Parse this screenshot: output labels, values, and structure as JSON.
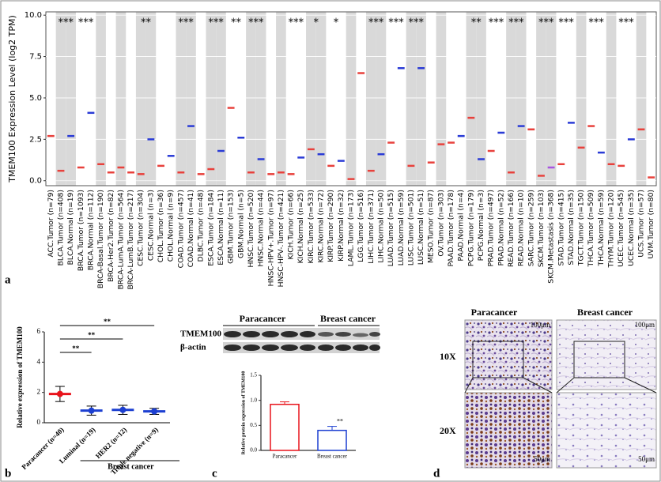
{
  "panels": [
    "a",
    "b",
    "c",
    "d"
  ],
  "chart_data": [
    {
      "type": "box",
      "ylabel": "TMEM100 Expression Level (log2 TPM)",
      "categories": [
        "ACC.Tumor (n=79)",
        "BLCA.Tumor (n=408)",
        "BLCA.Normal (n=19)",
        "BRCA.Tumor (n=1093)",
        "BRCA.Normal (n=112)",
        "BRCA-Basal.Tumor (n=190)",
        "BRCA-Her2.Tumor (n=82)",
        "BRCA-LumA.Tumor (n=564)",
        "BRCA-LumB.Tumor (n=217)",
        "CESC.Tumor (n=304)",
        "CESC.Normal (n=3)",
        "CHOL.Tumor (n=36)",
        "CHOL.Normal (n=9)",
        "COAD.Tumor (n=457)",
        "COAD.Normal (n=41)",
        "DLBC.Tumor (n=48)",
        "ESCA.Tumor (n=184)",
        "ESCA.Normal (n=11)",
        "GBM.Tumor (n=153)",
        "GBM.Normal (n=5)",
        "HNSC.Tumor (n=520)",
        "HNSC.Normal (n=44)",
        "HNSC-HPV+.Tumor (n=97)",
        "HNSC-HPV-.Tumor (n=421)",
        "KICH.Tumor (n=66)",
        "KICH.Normal (n=25)",
        "KIRC.Tumor (n=533)",
        "KIRC.Normal (n=72)",
        "KIRP.Tumor (n=290)",
        "KIRP.Normal (n=32)",
        "LAML.Tumor (n=173)",
        "LGG.Tumor (n=516)",
        "LIHC.Tumor (n=371)",
        "LIHC.Normal (n=50)",
        "LUAD.Tumor (n=515)",
        "LUAD.Normal (n=59)",
        "LUSC.Tumor (n=501)",
        "LUSC.Normal (n=51)",
        "MESO.Tumor (n=87)",
        "OV.Tumor (n=303)",
        "PAAD.Tumor (n=178)",
        "PAAD.Normal (n=4)",
        "PCPG.Tumor (n=179)",
        "PCPG.Normal (n=3)",
        "PRAD.Tumor (n=497)",
        "PRAD.Normal (n=52)",
        "READ.Tumor (n=166)",
        "READ.Normal (n=10)",
        "SARC.Tumor (n=259)",
        "SKCM.Tumor (n=103)",
        "SKCM.Metastasis (n=368)",
        "STAD.Tumor (n=415)",
        "STAD.Normal (n=35)",
        "TGCT.Tumor (n=150)",
        "THCA.Tumor (n=509)",
        "THCA.Normal (n=59)",
        "THYM.Tumor (n=120)",
        "UCEC.Tumor (n=545)",
        "UCEC.Normal (n=35)",
        "UCS.Tumor (n=57)",
        "UVM.Tumor (n=80)"
      ],
      "values": [
        2.7,
        0.6,
        2.7,
        0.8,
        4.1,
        1.0,
        0.5,
        0.8,
        0.5,
        0.4,
        2.5,
        0.9,
        1.5,
        0.5,
        3.3,
        0.4,
        0.7,
        1.8,
        4.4,
        2.6,
        0.5,
        1.3,
        0.4,
        0.5,
        0.4,
        1.4,
        1.9,
        1.6,
        0.9,
        1.2,
        0.1,
        6.5,
        0.6,
        1.6,
        2.3,
        6.8,
        0.9,
        6.8,
        1.1,
        2.2,
        2.3,
        2.7,
        3.8,
        1.3,
        1.8,
        2.9,
        0.5,
        3.3,
        3.1,
        0.3,
        0.8,
        1.0,
        3.5,
        2.0,
        3.3,
        1.7,
        1.0,
        0.9,
        2.5,
        3.1,
        0.2
      ],
      "colors": [
        "#e8413c",
        "#e8413c",
        "#2a3bd6",
        "#e8413c",
        "#2a3bd6",
        "#e8413c",
        "#e8413c",
        "#e8413c",
        "#e8413c",
        "#e8413c",
        "#2a3bd6",
        "#e8413c",
        "#2a3bd6",
        "#e8413c",
        "#2a3bd6",
        "#e8413c",
        "#e8413c",
        "#2a3bd6",
        "#e8413c",
        "#2a3bd6",
        "#e8413c",
        "#2a3bd6",
        "#e8413c",
        "#e8413c",
        "#e8413c",
        "#2a3bd6",
        "#e8413c",
        "#2a3bd6",
        "#e8413c",
        "#2a3bd6",
        "#e8413c",
        "#e8413c",
        "#e8413c",
        "#2a3bd6",
        "#e8413c",
        "#2a3bd6",
        "#e8413c",
        "#2a3bd6",
        "#e8413c",
        "#e8413c",
        "#e8413c",
        "#2a3bd6",
        "#e8413c",
        "#2a3bd6",
        "#e8413c",
        "#2a3bd6",
        "#e8413c",
        "#2a3bd6",
        "#e8413c",
        "#e8413c",
        "#a855e0",
        "#e8413c",
        "#2a3bd6",
        "#e8413c",
        "#e8413c",
        "#2a3bd6",
        "#e8413c",
        "#e8413c",
        "#2a3bd6",
        "#e8413c",
        "#e8413c"
      ],
      "significance": [
        null,
        "***",
        null,
        "***",
        null,
        null,
        null,
        null,
        null,
        "**",
        null,
        null,
        null,
        "***",
        null,
        null,
        "***",
        null,
        "**",
        null,
        "***",
        null,
        null,
        null,
        "***",
        null,
        "*",
        null,
        "*",
        null,
        null,
        null,
        "***",
        null,
        "***",
        null,
        "***",
        null,
        null,
        null,
        null,
        null,
        "**",
        null,
        "***",
        null,
        "***",
        null,
        null,
        "***",
        null,
        "***",
        null,
        null,
        "***",
        null,
        null,
        "***",
        null,
        null,
        null
      ],
      "ylim": [
        -0.3,
        10.2
      ],
      "yticks": [
        {
          "value": 0,
          "label": "0.0"
        },
        {
          "value": 2.5,
          "label": "2.5"
        },
        {
          "value": 5,
          "label": "5.0"
        },
        {
          "value": 7.5,
          "label": "7.5"
        },
        {
          "value": 10,
          "label": "10.0"
        }
      ],
      "grid": true
    },
    {
      "type": "dot",
      "ylabel": "Relative expression of TMEM100",
      "categories": [
        "Paracancer (n=40)",
        "Luminal (n=19)",
        "HER2 (n=12)",
        "Triple negative (n=9)"
      ],
      "values": [
        1.9,
        0.8,
        0.85,
        0.75
      ],
      "errors": [
        0.5,
        0.3,
        0.3,
        0.2
      ],
      "colors": [
        "#e8131b",
        "#1c3fd1",
        "#1c3fd1",
        "#1c3fd1"
      ],
      "significance": [
        null,
        "**",
        "**",
        "**"
      ],
      "group_label": "Breast cancer",
      "ylim": [
        0,
        6
      ],
      "yticks": [
        0,
        2,
        4,
        6
      ]
    },
    {
      "type": "bar",
      "ylabel": "Relative protein expression of TMEM100",
      "categories": [
        "Paracancer",
        "Breast cancer"
      ],
      "values": [
        0.92,
        0.4
      ],
      "errors": [
        0.05,
        0.08
      ],
      "colors": [
        "#e8131b",
        "#1c3fd1"
      ],
      "significance": [
        null,
        "**"
      ],
      "ylim": [
        0,
        1.5
      ],
      "yticks": [
        {
          "value": 0,
          "label": "0.0"
        },
        {
          "value": 0.5,
          "label": "0.5"
        },
        {
          "value": 1,
          "label": "1.0"
        },
        {
          "value": 1.5,
          "label": "1.5"
        }
      ]
    }
  ],
  "blot": {
    "groups": [
      "Paracancer",
      "Breast cancer"
    ],
    "proteins": [
      "TMEM100",
      "β-actin"
    ]
  },
  "ihc": {
    "columns": [
      "Paracancer",
      "Breast cancer"
    ],
    "rows": [
      "10X",
      "20X"
    ],
    "scale_bars": [
      "100μm",
      "100μm",
      "50μm",
      "50μm"
    ]
  }
}
